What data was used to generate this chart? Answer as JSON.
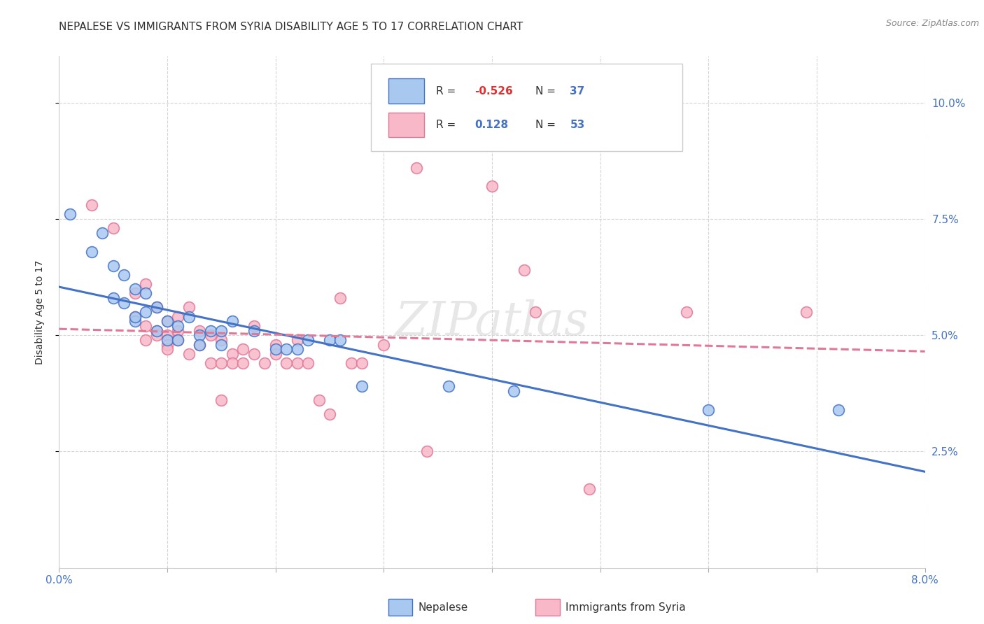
{
  "title": "NEPALESE VS IMMIGRANTS FROM SYRIA DISABILITY AGE 5 TO 17 CORRELATION CHART",
  "source": "Source: ZipAtlas.com",
  "ylabel": "Disability Age 5 to 17",
  "xmin": 0.0,
  "xmax": 0.08,
  "ymin": 0.0,
  "ymax": 0.11,
  "ytick_positions": [
    0.025,
    0.05,
    0.075,
    0.1
  ],
  "ytick_labels": [
    "2.5%",
    "5.0%",
    "7.5%",
    "10.0%"
  ],
  "blue_color": "#a8c8f0",
  "pink_color": "#f8b8c8",
  "blue_edge": "#4472c4",
  "pink_edge": "#e07898",
  "blue_scatter": [
    [
      0.001,
      0.076
    ],
    [
      0.003,
      0.068
    ],
    [
      0.004,
      0.072
    ],
    [
      0.005,
      0.065
    ],
    [
      0.005,
      0.058
    ],
    [
      0.006,
      0.063
    ],
    [
      0.006,
      0.057
    ],
    [
      0.007,
      0.06
    ],
    [
      0.007,
      0.053
    ],
    [
      0.007,
      0.054
    ],
    [
      0.008,
      0.059
    ],
    [
      0.008,
      0.055
    ],
    [
      0.009,
      0.056
    ],
    [
      0.009,
      0.051
    ],
    [
      0.01,
      0.053
    ],
    [
      0.01,
      0.049
    ],
    [
      0.011,
      0.052
    ],
    [
      0.011,
      0.049
    ],
    [
      0.012,
      0.054
    ],
    [
      0.013,
      0.05
    ],
    [
      0.013,
      0.048
    ],
    [
      0.014,
      0.051
    ],
    [
      0.015,
      0.051
    ],
    [
      0.015,
      0.048
    ],
    [
      0.016,
      0.053
    ],
    [
      0.018,
      0.051
    ],
    [
      0.02,
      0.047
    ],
    [
      0.021,
      0.047
    ],
    [
      0.022,
      0.047
    ],
    [
      0.023,
      0.049
    ],
    [
      0.025,
      0.049
    ],
    [
      0.026,
      0.049
    ],
    [
      0.028,
      0.039
    ],
    [
      0.036,
      0.039
    ],
    [
      0.042,
      0.038
    ],
    [
      0.06,
      0.034
    ],
    [
      0.072,
      0.034
    ]
  ],
  "pink_scatter": [
    [
      0.003,
      0.078
    ],
    [
      0.005,
      0.073
    ],
    [
      0.007,
      0.054
    ],
    [
      0.007,
      0.059
    ],
    [
      0.008,
      0.061
    ],
    [
      0.008,
      0.052
    ],
    [
      0.008,
      0.049
    ],
    [
      0.009,
      0.056
    ],
    [
      0.009,
      0.051
    ],
    [
      0.009,
      0.05
    ],
    [
      0.01,
      0.053
    ],
    [
      0.01,
      0.05
    ],
    [
      0.01,
      0.048
    ],
    [
      0.01,
      0.047
    ],
    [
      0.011,
      0.054
    ],
    [
      0.011,
      0.051
    ],
    [
      0.011,
      0.049
    ],
    [
      0.012,
      0.056
    ],
    [
      0.012,
      0.046
    ],
    [
      0.013,
      0.051
    ],
    [
      0.013,
      0.048
    ],
    [
      0.014,
      0.05
    ],
    [
      0.014,
      0.044
    ],
    [
      0.015,
      0.049
    ],
    [
      0.015,
      0.044
    ],
    [
      0.015,
      0.036
    ],
    [
      0.016,
      0.046
    ],
    [
      0.016,
      0.044
    ],
    [
      0.017,
      0.047
    ],
    [
      0.017,
      0.044
    ],
    [
      0.018,
      0.052
    ],
    [
      0.018,
      0.046
    ],
    [
      0.019,
      0.044
    ],
    [
      0.02,
      0.048
    ],
    [
      0.02,
      0.046
    ],
    [
      0.021,
      0.044
    ],
    [
      0.022,
      0.049
    ],
    [
      0.022,
      0.044
    ],
    [
      0.023,
      0.044
    ],
    [
      0.024,
      0.036
    ],
    [
      0.025,
      0.033
    ],
    [
      0.026,
      0.058
    ],
    [
      0.027,
      0.044
    ],
    [
      0.028,
      0.044
    ],
    [
      0.03,
      0.048
    ],
    [
      0.033,
      0.086
    ],
    [
      0.034,
      0.025
    ],
    [
      0.04,
      0.082
    ],
    [
      0.043,
      0.064
    ],
    [
      0.044,
      0.055
    ],
    [
      0.049,
      0.017
    ],
    [
      0.058,
      0.055
    ],
    [
      0.069,
      0.055
    ]
  ],
  "watermark": "ZIPatlas",
  "background_color": "#ffffff",
  "grid_color": "#d0d0d0"
}
